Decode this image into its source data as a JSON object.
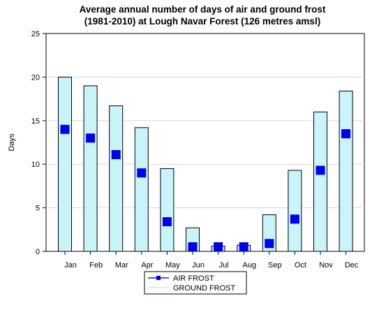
{
  "colors": {
    "ground_frost_fill": "#c8f4fa",
    "bar_stroke": "#000000",
    "air_frost_marker": "#0000ee",
    "legend_line": "#1a2a9a",
    "gridline": "#d8d8d8"
  },
  "chart_data": {
    "type": "bar",
    "title": [
      "Average annual number of days of air and ground frost",
      "(1981-2010) at Lough Navar Forest (126 metres amsl)"
    ],
    "xlabel": "",
    "ylabel": "Days",
    "ylim": [
      0,
      25
    ],
    "yticks": [
      0,
      5,
      10,
      15,
      20,
      25
    ],
    "grid": true,
    "legend_position": "bottom-center",
    "categories": [
      "Jan",
      "Feb",
      "Mar",
      "Apr",
      "May",
      "Jun",
      "Jul",
      "Aug",
      "Sep",
      "Oct",
      "Nov",
      "Dec"
    ],
    "series": [
      {
        "name": "AIR FROST",
        "style": "marker",
        "values": [
          14.0,
          13.0,
          11.1,
          9.0,
          3.4,
          0.5,
          0.2,
          0.2,
          0.9,
          3.7,
          9.3,
          13.5
        ]
      },
      {
        "name": "GROUND FROST",
        "style": "bar",
        "values": [
          20.0,
          19.0,
          16.7,
          14.2,
          9.5,
          2.7,
          0.6,
          0.7,
          4.2,
          9.3,
          16.0,
          18.4
        ]
      }
    ]
  }
}
